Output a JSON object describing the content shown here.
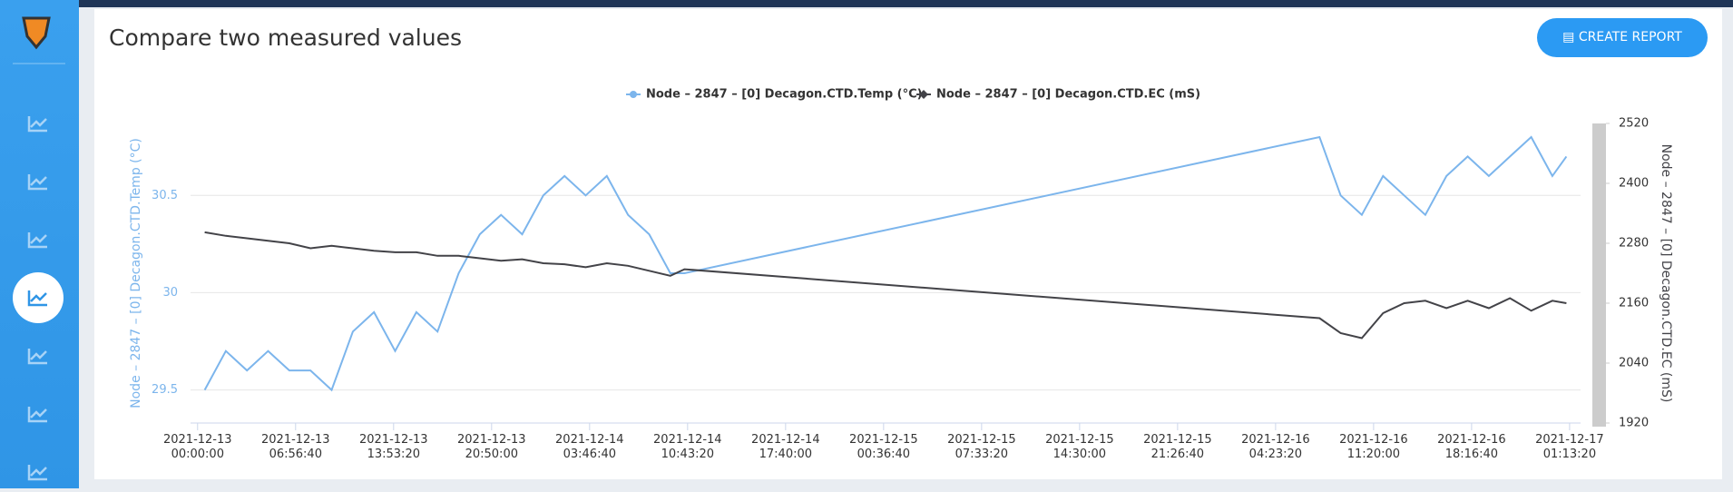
{
  "ui": {
    "button": "CREATE REPORT"
  },
  "chart_data": {
    "type": "line",
    "title": "Compare two measured values",
    "y_label": "Node – 2847 – [0] Decagon.CTD.Temp (°C)",
    "y2_label": "Node – 2847 – [0] Decagon.CTD.EC (mS)",
    "x": [
      "2021-12-13 00:30:00",
      "2021-12-13 02:00:00",
      "2021-12-13 03:30:00",
      "2021-12-13 05:00:00",
      "2021-12-13 06:30:00",
      "2021-12-13 08:00:00",
      "2021-12-13 09:30:00",
      "2021-12-13 11:00:00",
      "2021-12-13 12:30:00",
      "2021-12-13 14:00:00",
      "2021-12-13 15:30:00",
      "2021-12-13 17:00:00",
      "2021-12-13 18:30:00",
      "2021-12-13 20:00:00",
      "2021-12-13 21:30:00",
      "2021-12-13 23:00:00",
      "2021-12-14 00:30:00",
      "2021-12-14 02:00:00",
      "2021-12-14 03:30:00",
      "2021-12-14 05:00:00",
      "2021-12-14 06:30:00",
      "2021-12-14 08:00:00",
      "2021-12-14 09:30:00",
      "2021-12-14 10:30:00",
      "2021-12-16 07:30:00",
      "2021-12-16 09:00:00",
      "2021-12-16 10:30:00",
      "2021-12-16 12:00:00",
      "2021-12-16 13:30:00",
      "2021-12-16 15:00:00",
      "2021-12-16 16:30:00",
      "2021-12-16 18:00:00",
      "2021-12-16 19:30:00",
      "2021-12-16 21:00:00",
      "2021-12-16 22:30:00",
      "2021-12-17 00:00:00",
      "2021-12-17 01:00:00"
    ],
    "series": [
      {
        "name": "Node – 2847 – [0] Decagon.CTD.Temp (°C)",
        "color": "#7cb5ec",
        "marker": "circle",
        "values": [
          29.5,
          29.7,
          29.6,
          29.7,
          29.6,
          29.6,
          29.5,
          29.8,
          29.9,
          29.7,
          29.9,
          29.8,
          30.1,
          30.3,
          30.4,
          30.3,
          30.5,
          30.6,
          30.5,
          30.6,
          30.4,
          30.3,
          30.1,
          30.1,
          30.8,
          30.5,
          30.4,
          30.6,
          30.5,
          30.4,
          30.6,
          30.7,
          30.6,
          30.7,
          30.8,
          30.6,
          30.7
        ]
      },
      {
        "name": "Node – 2847 – [0] Decagon.CTD.EC (mS)",
        "color": "#434348",
        "marker": "diamond",
        "axis": "y2",
        "values": [
          2302,
          2295,
          2290,
          2285,
          2280,
          2270,
          2275,
          2270,
          2265,
          2262,
          2262,
          2255,
          2255,
          2250,
          2245,
          2248,
          2240,
          2238,
          2232,
          2240,
          2235,
          2225,
          2215,
          2228,
          2130,
          2100,
          2090,
          2140,
          2160,
          2165,
          2150,
          2165,
          2150,
          2170,
          2145,
          2165,
          2160
        ]
      }
    ],
    "xlim": [
      "2021-12-12 23:30:00",
      "2021-12-17 02:00:00"
    ],
    "xticks": [
      "2021-12-13 00:00:00",
      "2021-12-13 06:56:40",
      "2021-12-13 13:53:20",
      "2021-12-13 20:50:00",
      "2021-12-14 03:46:40",
      "2021-12-14 10:43:20",
      "2021-12-14 17:40:00",
      "2021-12-15 00:36:40",
      "2021-12-15 07:33:20",
      "2021-12-15 14:30:00",
      "2021-12-15 21:26:40",
      "2021-12-16 04:23:20",
      "2021-12-16 11:20:00",
      "2021-12-16 18:16:40",
      "2021-12-17 01:13:20"
    ],
    "ylim": [
      29.33,
      30.87
    ],
    "yticks": [
      29.5,
      30,
      30.5
    ],
    "y2lim": [
      1920,
      2520
    ],
    "y2ticks": [
      1920,
      2040,
      2160,
      2280,
      2400,
      2520
    ],
    "grid": true
  }
}
